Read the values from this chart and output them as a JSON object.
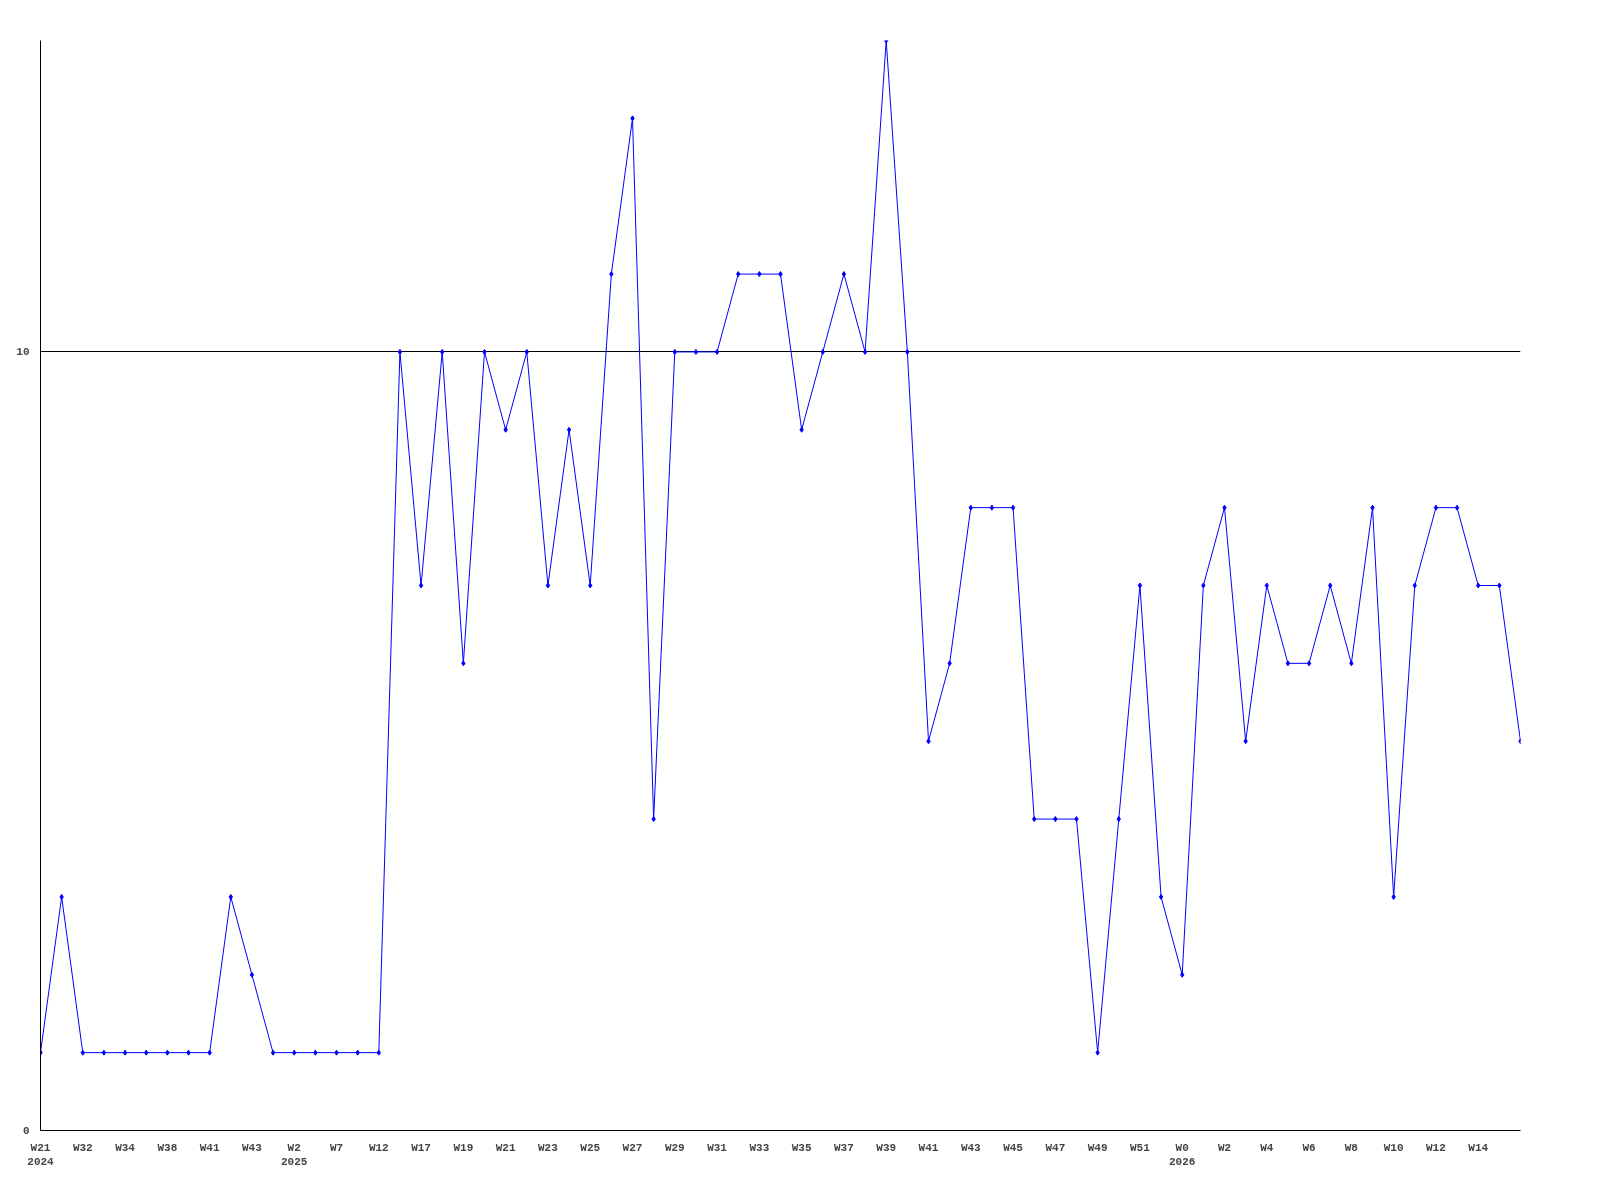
{
  "chart_data": {
    "type": "line",
    "categories": [
      "W21\n2024",
      null,
      "W32",
      null,
      "W34",
      null,
      "W38",
      null,
      "W41",
      null,
      "W43",
      null,
      "W2\n2025",
      null,
      "W7",
      null,
      "W12",
      null,
      "W17",
      null,
      "W19",
      null,
      "W21",
      null,
      "W23",
      null,
      "W25",
      null,
      "W27",
      null,
      "W29",
      null,
      "W31",
      null,
      "W33",
      null,
      "W35",
      null,
      "W37",
      null,
      "W39",
      null,
      "W41",
      null,
      "W43",
      null,
      "W45",
      null,
      "W47",
      null,
      "W49",
      null,
      "W51",
      null,
      "W0\n2026",
      null,
      "W2",
      null,
      "W4",
      null,
      "W6",
      null,
      "W8",
      null,
      "W10",
      null,
      "W12",
      null,
      "W14",
      null,
      null
    ],
    "series": [
      {
        "color": "#0000ff",
        "values": [
          1,
          3,
          1,
          1,
          1,
          1,
          1,
          1,
          1,
          3,
          2,
          1,
          1,
          1,
          1,
          1,
          1,
          10,
          7,
          10,
          6,
          10,
          9,
          10,
          7,
          9,
          7,
          11,
          13,
          4,
          10,
          10,
          10,
          11,
          11,
          11,
          9,
          10,
          11,
          10,
          14,
          10,
          5,
          6,
          8,
          8,
          8,
          4,
          4,
          4,
          1,
          4,
          7,
          3,
          2,
          7,
          8,
          5,
          7,
          6,
          6,
          7,
          6,
          8,
          3,
          7,
          8,
          8,
          7,
          7,
          5
        ]
      }
    ],
    "ylim": [
      0,
      14
    ],
    "yticks": [
      0,
      10
    ],
    "grid": "y",
    "marker": "diamond",
    "line_style": "solid"
  }
}
